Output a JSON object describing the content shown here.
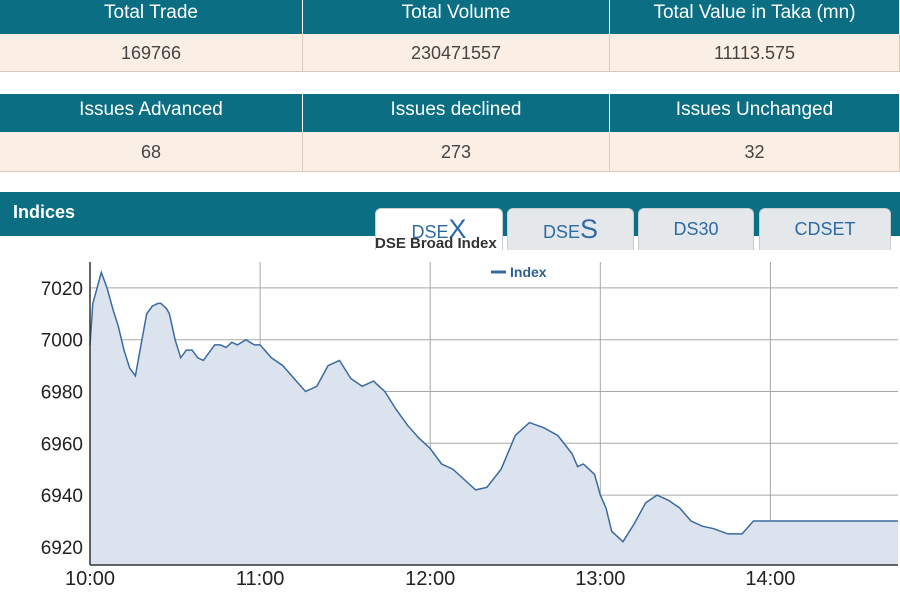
{
  "summary": {
    "headers": [
      "Total Trade",
      "Total Volume",
      "Total Value in Taka (mn)"
    ],
    "values": [
      "169766",
      "230471557",
      "11113.575"
    ]
  },
  "issues": {
    "headers": [
      "Issues Advanced",
      "Issues declined",
      "Issues Unchanged"
    ],
    "values": [
      "68",
      "273",
      "32"
    ]
  },
  "indices": {
    "title": "Indices",
    "tabs": [
      {
        "prefix": "DSE",
        "big": "X",
        "label": ""
      },
      {
        "prefix": "DSE",
        "big": "S",
        "label": ""
      },
      {
        "prefix": "",
        "big": "",
        "label": "DS30"
      },
      {
        "prefix": "",
        "big": "",
        "label": "CDSET"
      }
    ],
    "active_tab": 0
  },
  "colors": {
    "header_bg": "#0b6e83",
    "value_bg": "#fbeee4",
    "line": "#3a6aa0",
    "area": "#dbe4ee",
    "grid": "#a7a7a7"
  },
  "chart_data": {
    "type": "area",
    "title": "DSE Broad Index",
    "legend": [
      "Index"
    ],
    "legend_position": "top-center",
    "xlabel": "",
    "ylabel": "",
    "x_ticks": [
      "10:00",
      "11:00",
      "12:00",
      "13:00",
      "14:00"
    ],
    "y_ticks": [
      6920,
      6940,
      6960,
      6980,
      7000,
      7020
    ],
    "xlim": [
      "10:00",
      "14:45"
    ],
    "ylim": [
      6913,
      7030
    ],
    "grid": true,
    "series": [
      {
        "name": "Index",
        "x": [
          "10:00",
          "10:01",
          "10:02",
          "10:03",
          "10:04",
          "10:06",
          "10:08",
          "10:10",
          "10:12",
          "10:14",
          "10:16",
          "10:18",
          "10:20",
          "10:22",
          "10:24",
          "10:25",
          "10:26",
          "10:27",
          "10:28",
          "10:30",
          "10:32",
          "10:34",
          "10:36",
          "10:38",
          "10:40",
          "10:42",
          "10:44",
          "10:46",
          "10:48",
          "10:50",
          "10:52",
          "10:55",
          "10:58",
          "11:00",
          "11:04",
          "11:08",
          "11:12",
          "11:16",
          "11:20",
          "11:24",
          "11:28",
          "11:32",
          "11:36",
          "11:40",
          "11:44",
          "11:48",
          "11:52",
          "11:56",
          "12:00",
          "12:04",
          "12:08",
          "12:12",
          "12:16",
          "12:20",
          "12:25",
          "12:30",
          "12:35",
          "12:40",
          "12:45",
          "12:50",
          "12:52",
          "12:54",
          "12:56",
          "12:58",
          "13:00",
          "13:02",
          "13:04",
          "13:08",
          "13:12",
          "13:16",
          "13:20",
          "13:24",
          "13:28",
          "13:32",
          "13:36",
          "13:40",
          "13:45",
          "13:50",
          "13:54",
          "13:56",
          "13:58",
          "14:00",
          "14:04",
          "14:08",
          "14:12",
          "14:16",
          "14:20",
          "14:24",
          "14:26",
          "14:28",
          "14:30",
          "14:45"
        ],
        "values": [
          6998,
          7014,
          7018,
          7022,
          7026,
          7020,
          7012,
          7005,
          6996,
          6989,
          6986,
          6998,
          7010,
          7013,
          7014,
          7014,
          7013,
          7012,
          7010,
          7000,
          6993,
          6996,
          6996,
          6993,
          6992,
          6995,
          6998,
          6998,
          6997,
          6999,
          6998,
          7000,
          6998,
          6998,
          6993,
          6990,
          6985,
          6980,
          6982,
          6990,
          6992,
          6985,
          6982,
          6984,
          6980,
          6973,
          6967,
          6962,
          6958,
          6952,
          6950,
          6946,
          6942,
          6943,
          6950,
          6963,
          6968,
          6966,
          6963,
          6956,
          6951,
          6952,
          6950,
          6948,
          6940,
          6935,
          6926,
          6922,
          6929,
          6937,
          6940,
          6938,
          6935,
          6930,
          6928,
          6927,
          6925,
          6925,
          6930,
          6930,
          6930,
          6930,
          6930,
          6930,
          6930,
          6930,
          6930,
          6930,
          6930,
          6930,
          6930,
          6930
        ]
      }
    ]
  }
}
